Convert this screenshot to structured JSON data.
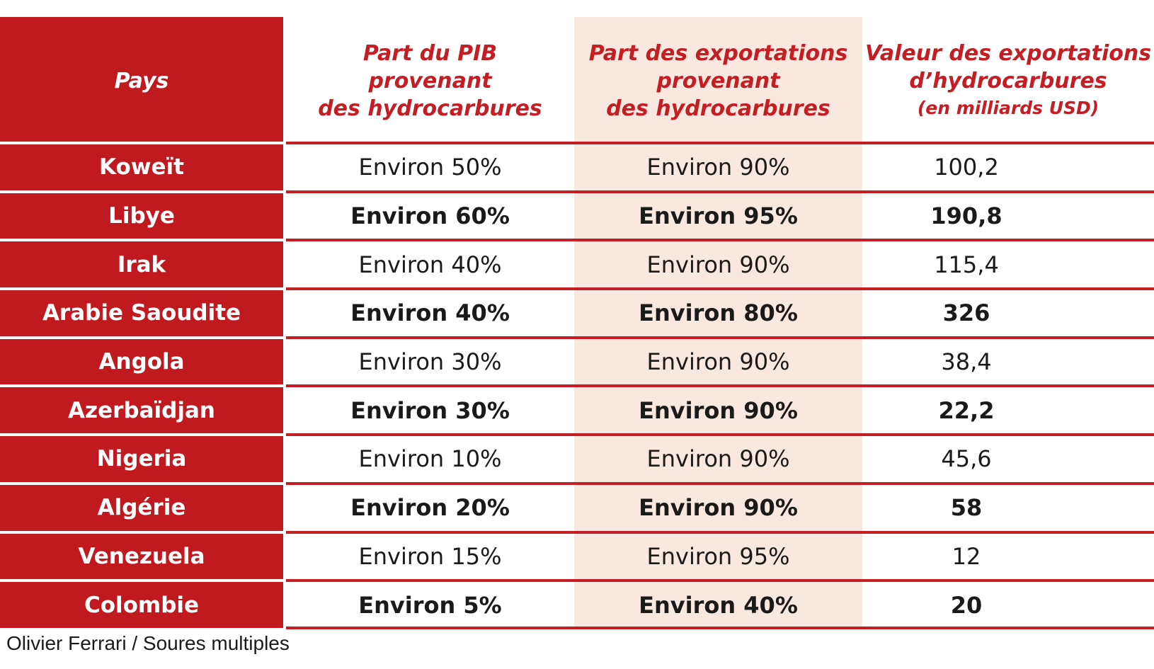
{
  "chart_data": {
    "type": "table",
    "columns": [
      "Pays",
      "Part du PIB provenant des hydrocarbures",
      "Part des exportations provenant des hydrocarbures",
      "Valeur des exportations d’hydrocarbures (en milliards USD)"
    ],
    "header": {
      "country": [
        "Pays"
      ],
      "gdp": [
        "Part du PIB",
        "provenant",
        "des hydrocarbures"
      ],
      "exports": [
        "Part des exportations",
        "provenant",
        "des hydrocarbures"
      ],
      "value": [
        "Valeur des exportations",
        "d’hydrocarbures"
      ],
      "value_unit": "(en milliards USD)"
    },
    "rows": [
      {
        "country": "Koweït",
        "gdp": "Environ 50%",
        "exports": "Environ 90%",
        "value": "100,2",
        "bold": false
      },
      {
        "country": "Libye",
        "gdp": "Environ 60%",
        "exports": "Environ 95%",
        "value": "190,8",
        "bold": true
      },
      {
        "country": "Irak",
        "gdp": "Environ 40%",
        "exports": "Environ 90%",
        "value": "115,4",
        "bold": false
      },
      {
        "country": "Arabie Saoudite",
        "gdp": "Environ 40%",
        "exports": "Environ 80%",
        "value": "326",
        "bold": true
      },
      {
        "country": "Angola",
        "gdp": "Environ 30%",
        "exports": "Environ 90%",
        "value": "38,4",
        "bold": false
      },
      {
        "country": "Azerbaïdjan",
        "gdp": "Environ 30%",
        "exports": "Environ 90%",
        "value": "22,2",
        "bold": true
      },
      {
        "country": "Nigeria",
        "gdp": "Environ 10%",
        "exports": "Environ 90%",
        "value": "45,6",
        "bold": false
      },
      {
        "country": "Algérie",
        "gdp": "Environ 20%",
        "exports": "Environ 90%",
        "value": "58",
        "bold": true
      },
      {
        "country": "Venezuela",
        "gdp": "Environ 15%",
        "exports": "Environ 95%",
        "value": "12",
        "bold": false
      },
      {
        "country": "Colombie",
        "gdp": "Environ 5%",
        "exports": "Environ 40%",
        "value": "20",
        "bold": true
      }
    ],
    "source": "Olivier Ferrari / Soures multiples",
    "colors": {
      "header_red": "#c0191f",
      "text_red": "#c41e24",
      "highlight_column": "#f9e8e0"
    }
  }
}
